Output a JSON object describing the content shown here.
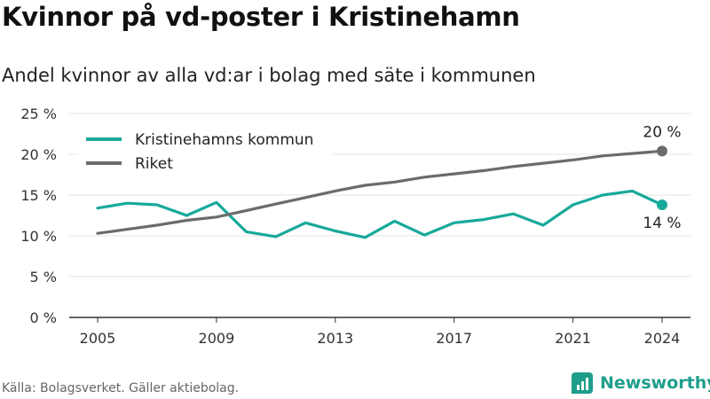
{
  "header": {
    "title": "Kvinnor på vd-poster i Kristinehamn",
    "subtitle": "Andel kvinnor av alla vd:ar i bolag med säte i kommunen"
  },
  "footer": {
    "source": "Källa: Bolagsverket. Gäller aktiebolag.",
    "brand": "Newsworthy"
  },
  "colors": {
    "kommun": "#17a99a",
    "riket": "#6b6b6b",
    "grid": "#e6e6e6",
    "brand": "#1f9e8c"
  },
  "chart_data": {
    "type": "line",
    "x": [
      2005,
      2006,
      2007,
      2008,
      2009,
      2010,
      2011,
      2012,
      2013,
      2014,
      2015,
      2016,
      2017,
      2018,
      2019,
      2020,
      2021,
      2022,
      2023,
      2024
    ],
    "series": [
      {
        "name": "Kristinehamns kommun",
        "values": [
          13.4,
          14.0,
          13.8,
          12.5,
          14.1,
          10.5,
          9.9,
          11.6,
          10.6,
          9.8,
          11.8,
          10.1,
          11.6,
          12.0,
          12.7,
          11.3,
          13.8,
          15.0,
          15.5,
          13.8
        ],
        "end_label": "14 %"
      },
      {
        "name": "Riket",
        "values": [
          10.3,
          10.8,
          11.3,
          11.9,
          12.3,
          13.1,
          13.9,
          14.7,
          15.5,
          16.2,
          16.6,
          17.2,
          17.6,
          18.0,
          18.5,
          18.9,
          19.3,
          19.8,
          20.1,
          20.4
        ],
        "end_label": "20 %"
      }
    ],
    "ylim": [
      0,
      25
    ],
    "yticks": [
      0,
      5,
      10,
      15,
      20,
      25
    ],
    "ytick_labels": [
      "0 %",
      "5 %",
      "10 %",
      "15 %",
      "20 %",
      "25 %"
    ],
    "xticks": [
      2005,
      2009,
      2013,
      2017,
      2021,
      2024
    ],
    "xtick_labels": [
      "2005",
      "2009",
      "2013",
      "2017",
      "2021",
      "2024"
    ],
    "grid": true,
    "legend_position": "top-left"
  }
}
